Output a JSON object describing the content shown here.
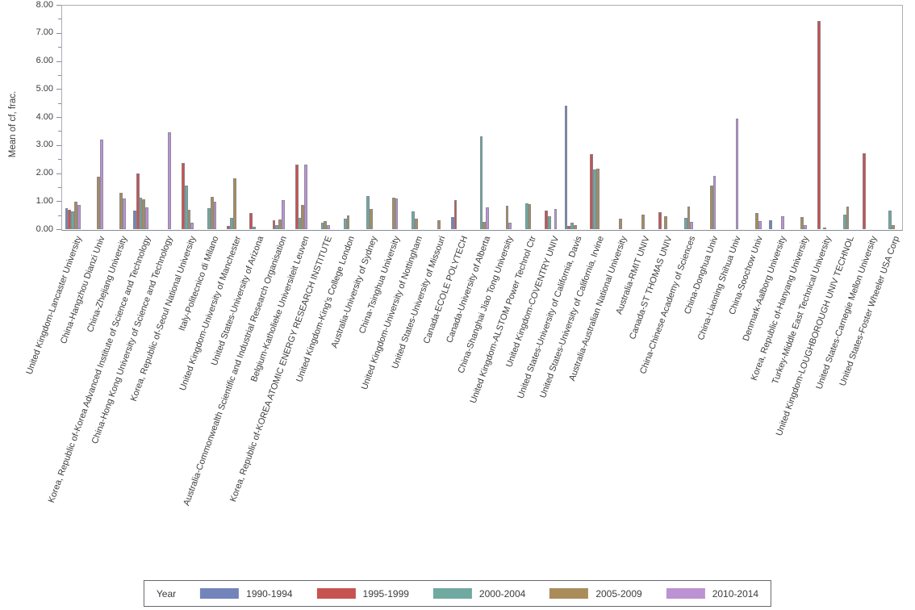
{
  "chart": {
    "y_tick_labels": [
      "0.00",
      "1.00",
      "2.00",
      "3.00",
      "4.00",
      "5.00",
      "6.00",
      "7.00",
      "8.00"
    ]
  },
  "legend": {
    "title": "Year",
    "entries": [
      {
        "label": "1990-1994",
        "color": "#7384BB"
      },
      {
        "label": "1995-1999",
        "color": "#C75351"
      },
      {
        "label": "2000-2004",
        "color": "#6FA99F"
      },
      {
        "label": "2005-2009",
        "color": "#AA8C5B"
      },
      {
        "label": "2010-2014",
        "color": "#BC92D3"
      }
    ]
  },
  "chart_data": {
    "type": "bar",
    "title": "",
    "xlabel": "",
    "ylabel": "Mean of cf, frac.",
    "ylim": [
      0,
      8
    ],
    "y_major_step": 1.0,
    "y_minor_step": 0.5,
    "grid": false,
    "legend_position": "bottom",
    "categories": [
      "United Kingdom-Lancaster University",
      "China-Hangzhou Dianzi Univ",
      "China-Zhejiang University",
      "Korea, Republic of-Korea Advanced Institute of Science and Technology",
      "China-Hong Kong University of Science and Technology",
      "Korea, Republic of-Seoul National University",
      "Italy-Politecnico di Milano",
      "United Kingdom-University of Manchester",
      "United States-University of Arizona",
      "Australia-Commonwealth Scientific and Industrial Research Organisation",
      "Belgium-Katholieke Universiteit Leuven",
      "Korea, Republic of-KOREA ATOMIC ENERGY RESEARCH INSTITUTE",
      "United Kingdom-King's College London",
      "Australia-University of Sydney",
      "China-Tsinghua University",
      "United Kingdom-University of Nottingham",
      "United States-University of Missouri",
      "Canada-ECOLE POLYTECH",
      "Canada-University of Alberta",
      "China-Shanghai Jiao Tong University",
      "United Kingdom-ALSTOM Power Technol Ctr",
      "United Kingdom-COVENTRY UNIV",
      "United States-University of California, Davis",
      "United States-University of California, Irvine",
      "Australia-Australian National University",
      "Australia-RMIT UNIV",
      "Canada-ST THOMAS UNIV",
      "China-Chinese Academy of Sciences",
      "China-Donghua Univ",
      "China-Liaoning Shihua Univ",
      "China-Soochow Univ",
      "Denmark-Aalborg University",
      "Korea, Republic of-Hanyang University",
      "Turkey-Middle East Technical University",
      "United Kingdom-LOUGHBOROUGH UNIV TECHNOL",
      "United States-Carnegie Mellon University",
      "United States-Foster Wheeler USA Corp"
    ],
    "series": [
      {
        "name": "1990-1994",
        "color": "#7384BB",
        "values": [
          0.75,
          0,
          0,
          0.65,
          0,
          0,
          0,
          0,
          0,
          0,
          0,
          0,
          0,
          0,
          0,
          0,
          0,
          0.44,
          0,
          0,
          0,
          0,
          4.41,
          0,
          0,
          0,
          0,
          0,
          0,
          0,
          0,
          0.31,
          0,
          0,
          0,
          0,
          0
        ]
      },
      {
        "name": "1995-1999",
        "color": "#C75351",
        "values": [
          0.68,
          0,
          0,
          2.0,
          0,
          2.35,
          0,
          0.12,
          0.57,
          0.32,
          2.31,
          0,
          0,
          0,
          0,
          0,
          0,
          1.03,
          0,
          0,
          0,
          0.65,
          0.11,
          2.68,
          0,
          0,
          0.61,
          0,
          0,
          0,
          0,
          0,
          0,
          7.43,
          0,
          2.7,
          0
        ]
      },
      {
        "name": "2000-2004",
        "color": "#6FA99F",
        "values": [
          0.64,
          0,
          0,
          1.13,
          0,
          1.56,
          0.75,
          0.39,
          0.08,
          0.14,
          0.39,
          0.23,
          0.38,
          1.19,
          0,
          0.62,
          0,
          0,
          3.31,
          0,
          0.93,
          0.47,
          0.22,
          2.14,
          0,
          0,
          0,
          0.4,
          0,
          0,
          0,
          0,
          0,
          0,
          0.53,
          0,
          0.65
        ]
      },
      {
        "name": "2005-2009",
        "color": "#AA8C5B",
        "values": [
          0.98,
          1.88,
          1.3,
          1.07,
          0,
          0.7,
          1.15,
          1.8,
          0,
          0.34,
          0.87,
          0.28,
          0.49,
          0.72,
          1.13,
          0.38,
          0.33,
          0,
          0.27,
          0.84,
          0.9,
          0,
          0.15,
          2.16,
          0.38,
          0.52,
          0.45,
          0.8,
          1.56,
          0,
          0.58,
          0,
          0.42,
          0.07,
          0.82,
          0,
          0.15
        ]
      },
      {
        "name": "2010-2014",
        "color": "#BC92D3",
        "values": [
          0.85,
          3.2,
          1.08,
          0.77,
          3.46,
          0.22,
          0.97,
          0,
          0,
          1.04,
          2.29,
          0.14,
          0,
          0,
          1.09,
          0,
          0,
          0,
          0.78,
          0.22,
          0,
          0.72,
          0,
          0,
          0,
          0,
          0,
          0.25,
          1.9,
          3.94,
          0.29,
          0.45,
          0.15,
          0,
          0,
          0,
          0
        ]
      }
    ]
  }
}
